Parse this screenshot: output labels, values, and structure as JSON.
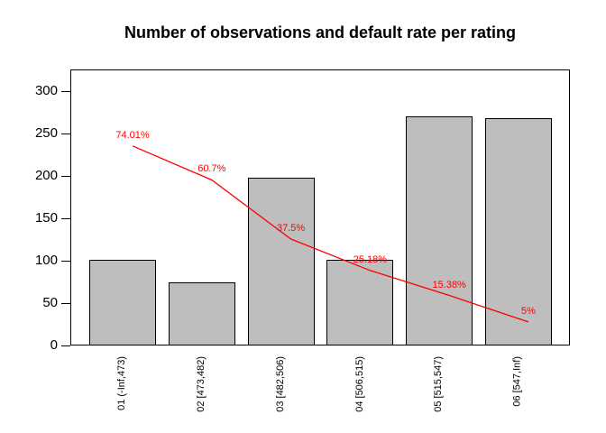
{
  "chart_data": {
    "type": "bar",
    "title": "Number of observations and default rate per rating",
    "xlabel": "",
    "ylabel": "",
    "categories": [
      "01 (-Inf,473)",
      "02 [473,482)",
      "03 [482,506)",
      "04 [506,515)",
      "05 [515,547)",
      "06 [547,Inf)"
    ],
    "series": [
      {
        "name": "Number of observations",
        "type": "bar",
        "values": [
          100,
          73,
          197,
          100,
          269,
          267
        ]
      },
      {
        "name": "Default rate",
        "type": "line",
        "unit": "%",
        "values": [
          74.01,
          60.7,
          37.5,
          25.18,
          15.38,
          5
        ],
        "point_labels": [
          "74.01%",
          "60.7%",
          "37.5%",
          "25.18%",
          "15.38%",
          "5%"
        ]
      }
    ],
    "y_ticks": [
      0,
      50,
      100,
      150,
      200,
      250,
      300
    ],
    "ylim": [
      0,
      325
    ],
    "grid": false,
    "legend": "none",
    "colors": {
      "bar_fill": "#bebebe",
      "bar_border": "#000000",
      "line": "#ff0000",
      "label": "#ff0000",
      "axis": "#000000",
      "title": "#000000"
    }
  }
}
